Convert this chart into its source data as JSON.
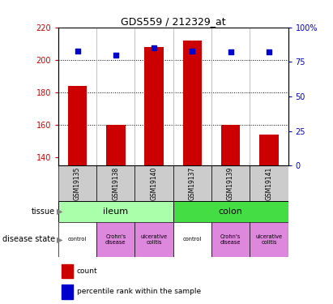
{
  "title": "GDS559 / 212329_at",
  "samples": [
    "GSM19135",
    "GSM19138",
    "GSM19140",
    "GSM19137",
    "GSM19139",
    "GSM19141"
  ],
  "counts": [
    184,
    160,
    208,
    212,
    160,
    154
  ],
  "percentiles": [
    83,
    80,
    85,
    83,
    82,
    82
  ],
  "ylim_left": [
    135,
    220
  ],
  "ylim_right": [
    0,
    100
  ],
  "yticks_left": [
    140,
    160,
    180,
    200,
    220
  ],
  "yticks_right": [
    0,
    25,
    50,
    75,
    100
  ],
  "ytick_labels_left": [
    "140",
    "160",
    "180",
    "200",
    "220"
  ],
  "ytick_labels_right": [
    "0",
    "25",
    "50",
    "75",
    "100%"
  ],
  "bar_color": "#cc0000",
  "dot_color": "#0000cc",
  "bar_bottom": 135,
  "tissue_ileum_color": "#aaffaa",
  "tissue_colon_color": "#44dd44",
  "disease_colors": [
    "#ffffff",
    "#dd88dd",
    "#dd88dd",
    "#ffffff",
    "#dd88dd",
    "#dd88dd"
  ],
  "disease_labels": [
    "control",
    "Crohn's\ndisease",
    "ulcerative\ncolitis",
    "control",
    "Crohn's\ndisease",
    "ulcerative\ncolitis"
  ],
  "sample_box_color": "#cccccc",
  "legend_count_label": "count",
  "legend_percentile_label": "percentile rank within the sample",
  "tissue_row_label": "tissue",
  "disease_row_label": "disease state",
  "left_tick_color": "#cc0000",
  "right_tick_color": "#0000cc",
  "bg_color": "#ffffff"
}
